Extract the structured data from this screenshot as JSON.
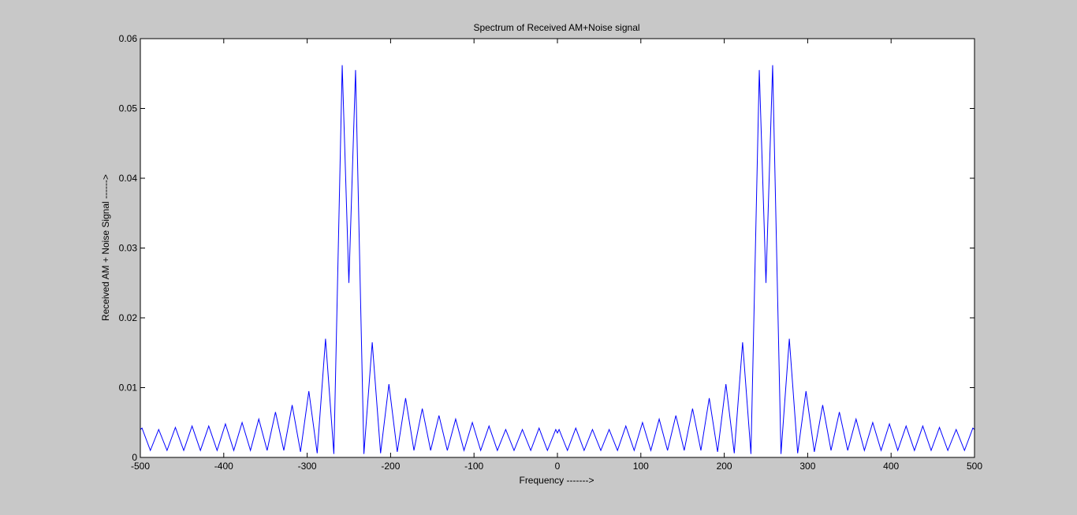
{
  "chart_data": {
    "type": "line",
    "title": "Spectrum of Received AM+Noise signal",
    "xlabel": "Frequency  ------->",
    "ylabel": "Received AM + Noise Signal ------>",
    "color": "#0000ff",
    "x": [
      -500,
      -498,
      -488,
      -478,
      -468,
      -458,
      -448,
      -438,
      -428,
      -418,
      -408,
      -398,
      -388,
      -378,
      -368,
      -358,
      -348,
      -338,
      -328,
      -318,
      -308,
      -298,
      -288,
      -278,
      -268,
      -258,
      -250,
      -242,
      -232,
      -222,
      -212,
      -202,
      -192,
      -182,
      -172,
      -162,
      -152,
      -142,
      -132,
      -122,
      -112,
      -102,
      -92,
      -82,
      -72,
      -62,
      -52,
      -42,
      -32,
      -22,
      -12,
      -2,
      0,
      2,
      12,
      22,
      32,
      42,
      52,
      62,
      72,
      82,
      92,
      102,
      112,
      122,
      132,
      142,
      152,
      162,
      172,
      182,
      192,
      202,
      212,
      222,
      232,
      242,
      250,
      258,
      268,
      278,
      288,
      298,
      308,
      318,
      328,
      338,
      348,
      358,
      368,
      378,
      388,
      398,
      408,
      418,
      428,
      438,
      448,
      458,
      468,
      478,
      488,
      498,
      500
    ],
    "values": [
      0.004,
      0.0042,
      0.001,
      0.004,
      0.001,
      0.0043,
      0.001,
      0.0045,
      0.001,
      0.0045,
      0.001,
      0.0048,
      0.001,
      0.005,
      0.001,
      0.0055,
      0.001,
      0.0065,
      0.001,
      0.0075,
      0.0008,
      0.0095,
      0.0006,
      0.017,
      0.0005,
      0.0562,
      0.025,
      0.0555,
      0.0005,
      0.0165,
      0.0006,
      0.0105,
      0.0008,
      0.0085,
      0.001,
      0.007,
      0.001,
      0.006,
      0.001,
      0.0055,
      0.001,
      0.005,
      0.001,
      0.0045,
      0.001,
      0.004,
      0.001,
      0.004,
      0.001,
      0.0042,
      0.001,
      0.004,
      0.0035,
      0.004,
      0.001,
      0.0042,
      0.001,
      0.004,
      0.001,
      0.004,
      0.001,
      0.0045,
      0.001,
      0.005,
      0.001,
      0.0055,
      0.001,
      0.006,
      0.001,
      0.007,
      0.001,
      0.0085,
      0.0008,
      0.0105,
      0.0006,
      0.0165,
      0.0005,
      0.0555,
      0.025,
      0.0562,
      0.0005,
      0.017,
      0.0006,
      0.0095,
      0.0008,
      0.0075,
      0.001,
      0.0065,
      0.001,
      0.0055,
      0.001,
      0.005,
      0.001,
      0.0048,
      0.001,
      0.0045,
      0.001,
      0.0045,
      0.001,
      0.0043,
      0.001,
      0.004,
      0.001,
      0.0042,
      0.004
    ],
    "xlim": [
      -500,
      500
    ],
    "xticks": [
      -500,
      -400,
      -300,
      -200,
      -100,
      0,
      100,
      200,
      300,
      400,
      500
    ],
    "ylim": [
      0,
      0.06
    ],
    "yticks": [
      0,
      0.01,
      0.02,
      0.03,
      0.04,
      0.05,
      0.06
    ]
  }
}
